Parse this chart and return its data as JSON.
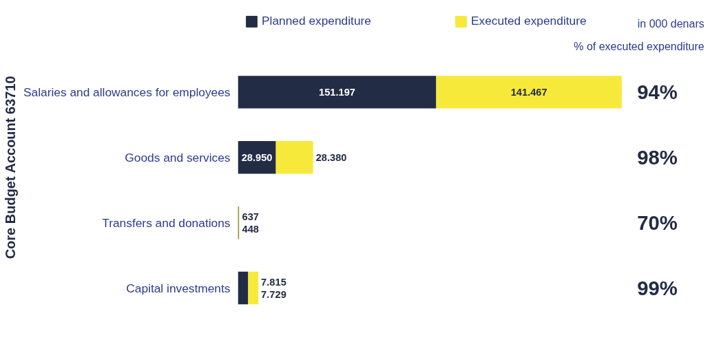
{
  "chart_data": {
    "type": "bar",
    "orientation": "horizontal",
    "stacked": true,
    "ylabel": "Core Budget Account 63710",
    "categories": [
      "Salaries and allowances for employees",
      "Goods and services",
      "Transfers and donations",
      "Capital investments"
    ],
    "series": [
      {
        "name": "Planned expenditure",
        "color": "#232c45",
        "values": [
          151197,
          28950,
          637,
          7815
        ],
        "value_labels": [
          "151.197",
          "28.950",
          "637",
          "7.815"
        ]
      },
      {
        "name": "Executed expenditure",
        "color": "#f7e93a",
        "values": [
          141467,
          28380,
          448,
          7729
        ],
        "value_labels": [
          "141.467",
          "28.380",
          "448",
          "7.729"
        ]
      }
    ],
    "annotations": [
      "in 000 denars",
      "% of executed expenditure",
      "94%",
      "98%",
      "70%",
      "99%"
    ],
    "legend": "top",
    "grid": false
  }
}
